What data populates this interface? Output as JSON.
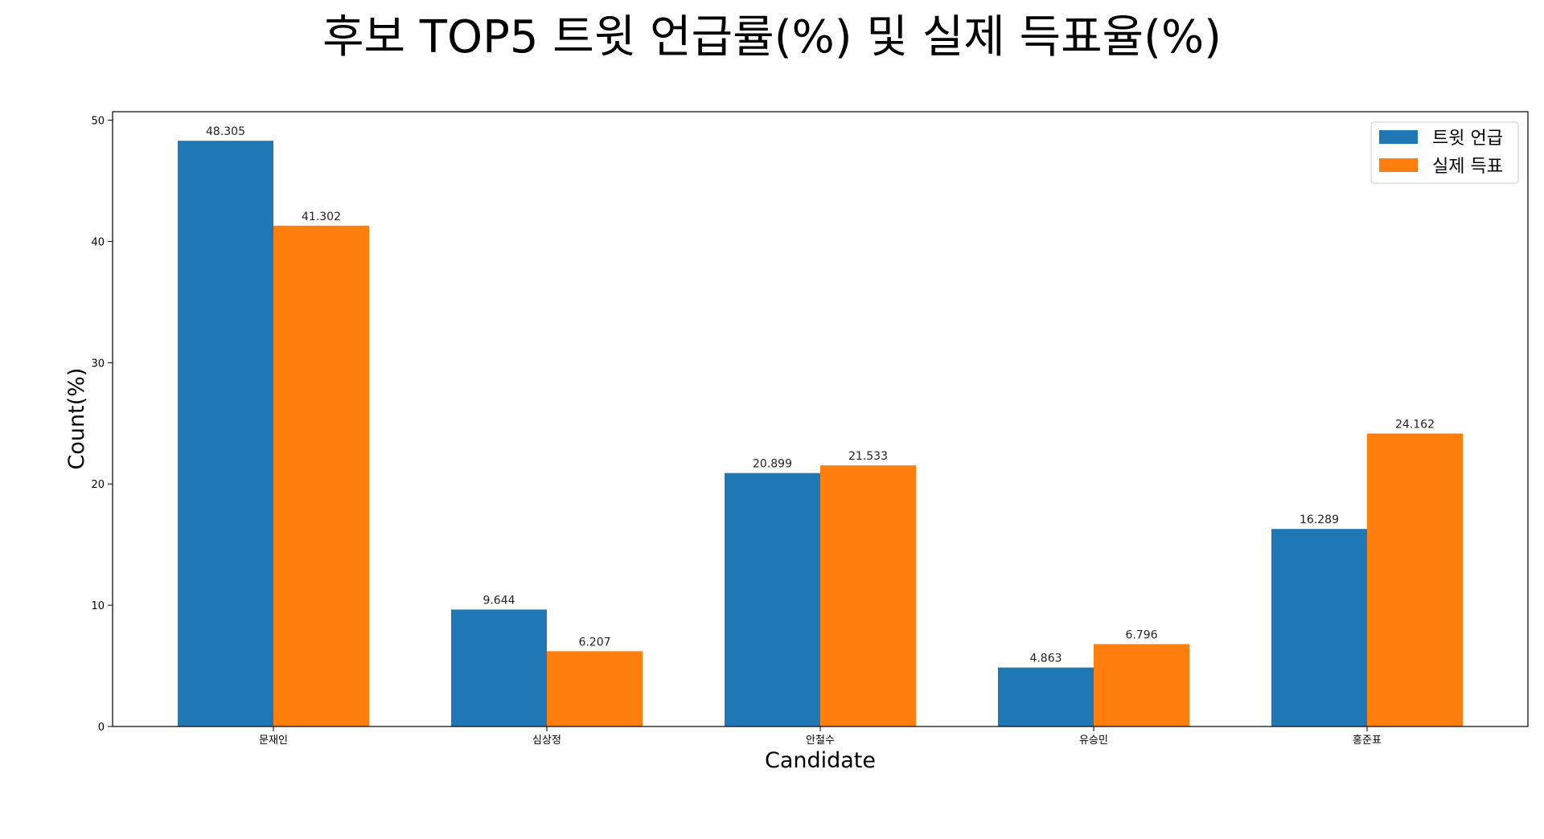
{
  "chart_data": {
    "type": "bar",
    "title": "후보 TOP5 트윗 언급률(%) 및 실제 득표율(%)",
    "xlabel": "Candidate",
    "ylabel": "Count(%)",
    "categories": [
      "문재인",
      "심상정",
      "안철수",
      "유승민",
      "홍준표"
    ],
    "series": [
      {
        "name": "트윗 언급",
        "color": "#1f77b4",
        "values": [
          48.305,
          9.644,
          20.899,
          4.863,
          16.289
        ],
        "value_labels": [
          "48.305",
          "9.644",
          "20.899",
          "4.863",
          "16.289"
        ]
      },
      {
        "name": "실제 득표",
        "color": "#ff7f0e",
        "values": [
          41.302,
          6.207,
          21.533,
          6.796,
          24.162
        ],
        "value_labels": [
          "41.302",
          "6.207",
          "21.533",
          "6.796",
          "24.162"
        ]
      }
    ],
    "ylim": [
      0,
      50.7
    ],
    "yticks": [
      0,
      10,
      20,
      30,
      40,
      50
    ],
    "grid": false,
    "legend_position": "top-right"
  }
}
